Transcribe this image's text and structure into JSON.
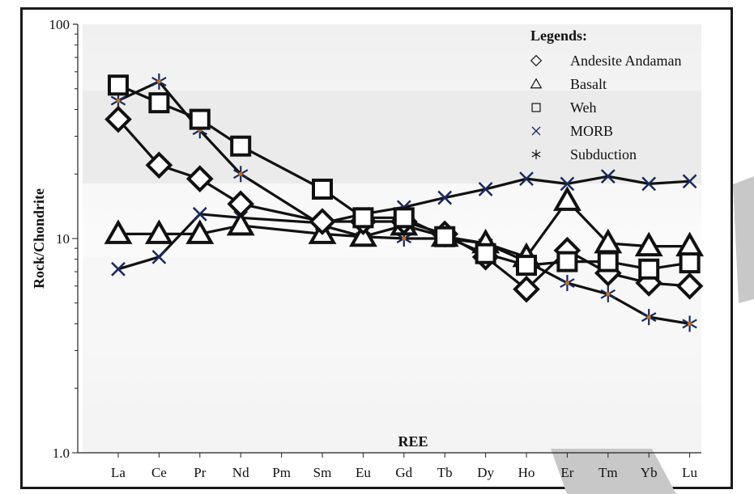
{
  "chart_data": {
    "type": "line",
    "title": "",
    "xlabel": "REE",
    "ylabel": "Rock/Chondrite",
    "yscale": "log",
    "ylim": [
      1,
      100
    ],
    "yticks": [
      {
        "value": 1,
        "label": "1.0"
      },
      {
        "value": 10,
        "label": "10"
      },
      {
        "value": 100,
        "label": "100"
      }
    ],
    "categories": [
      "La",
      "Ce",
      "Pr",
      "Nd",
      "Pm",
      "Sm",
      "Eu",
      "Gd",
      "Tb",
      "Dy",
      "Ho",
      "Er",
      "Tm",
      "Yb",
      "Lu"
    ],
    "legend": {
      "title": "Legends:",
      "position": "top-right"
    },
    "series": [
      {
        "name": "Andesite Andaman",
        "marker": "diamond",
        "points": [
          [
            "La",
            36
          ],
          [
            "Ce",
            22
          ],
          [
            "Pr",
            19
          ],
          [
            "Nd",
            14.5
          ],
          [
            "Sm",
            12
          ],
          [
            "Eu",
            12
          ],
          [
            "Gd",
            12
          ],
          [
            "Tb",
            10.5
          ],
          [
            "Dy",
            8.2
          ],
          [
            "Ho",
            5.8
          ],
          [
            "Er",
            8.8
          ],
          [
            "Tm",
            6.9
          ],
          [
            "Yb",
            6.2
          ],
          [
            "Lu",
            6.0
          ]
        ]
      },
      {
        "name": "Basalt",
        "marker": "triangle",
        "points": [
          [
            "La",
            10.5
          ],
          [
            "Ce",
            10.5
          ],
          [
            "Pr",
            10.5
          ],
          [
            "Nd",
            11.5
          ],
          [
            "Sm",
            10.5
          ],
          [
            "Eu",
            10.2
          ],
          [
            "Gd",
            11.5
          ],
          [
            "Tb",
            10.2
          ],
          [
            "Dy",
            9.5
          ],
          [
            "Ho",
            8.2
          ],
          [
            "Er",
            15
          ],
          [
            "Tm",
            9.5
          ],
          [
            "Yb",
            9.2
          ],
          [
            "Lu",
            9.2
          ]
        ]
      },
      {
        "name": "Weh",
        "marker": "square",
        "points": [
          [
            "La",
            52
          ],
          [
            "Ce",
            43
          ],
          [
            "Pr",
            36
          ],
          [
            "Nd",
            27
          ],
          [
            "Sm",
            17
          ],
          [
            "Eu",
            12.5
          ],
          [
            "Gd",
            12.5
          ],
          [
            "Tb",
            10.2
          ],
          [
            "Dy",
            8.5
          ],
          [
            "Ho",
            7.5
          ],
          [
            "Er",
            7.8
          ],
          [
            "Tm",
            7.8
          ],
          [
            "Yb",
            7.2
          ],
          [
            "Lu",
            7.7
          ]
        ]
      },
      {
        "name": "MORB",
        "marker": "x",
        "points": [
          [
            "La",
            7.2
          ],
          [
            "Ce",
            8.2
          ],
          [
            "Pr",
            13
          ],
          [
            "Nd",
            12.5
          ],
          [
            "Sm",
            11.8
          ],
          [
            "Eu",
            13
          ],
          [
            "Gd",
            14
          ],
          [
            "Tb",
            15.5
          ],
          [
            "Dy",
            17
          ],
          [
            "Ho",
            19
          ],
          [
            "Er",
            18
          ],
          [
            "Tm",
            19.5
          ],
          [
            "Yb",
            18
          ],
          [
            "Lu",
            18.5
          ]
        ]
      },
      {
        "name": "Subduction",
        "marker": "asterisk",
        "points": [
          [
            "La",
            44
          ],
          [
            "Ce",
            54
          ],
          [
            "Pr",
            32
          ],
          [
            "Nd",
            20
          ],
          [
            "Sm",
            11.5
          ],
          [
            "Eu",
            10.2
          ],
          [
            "Gd",
            10
          ],
          [
            "Tb",
            10
          ],
          [
            "Dy",
            9.5
          ],
          [
            "Ho",
            7.8
          ],
          [
            "Er",
            6.2
          ],
          [
            "Tm",
            5.5
          ],
          [
            "Yb",
            4.3
          ],
          [
            "Lu",
            4.0
          ]
        ]
      }
    ]
  }
}
